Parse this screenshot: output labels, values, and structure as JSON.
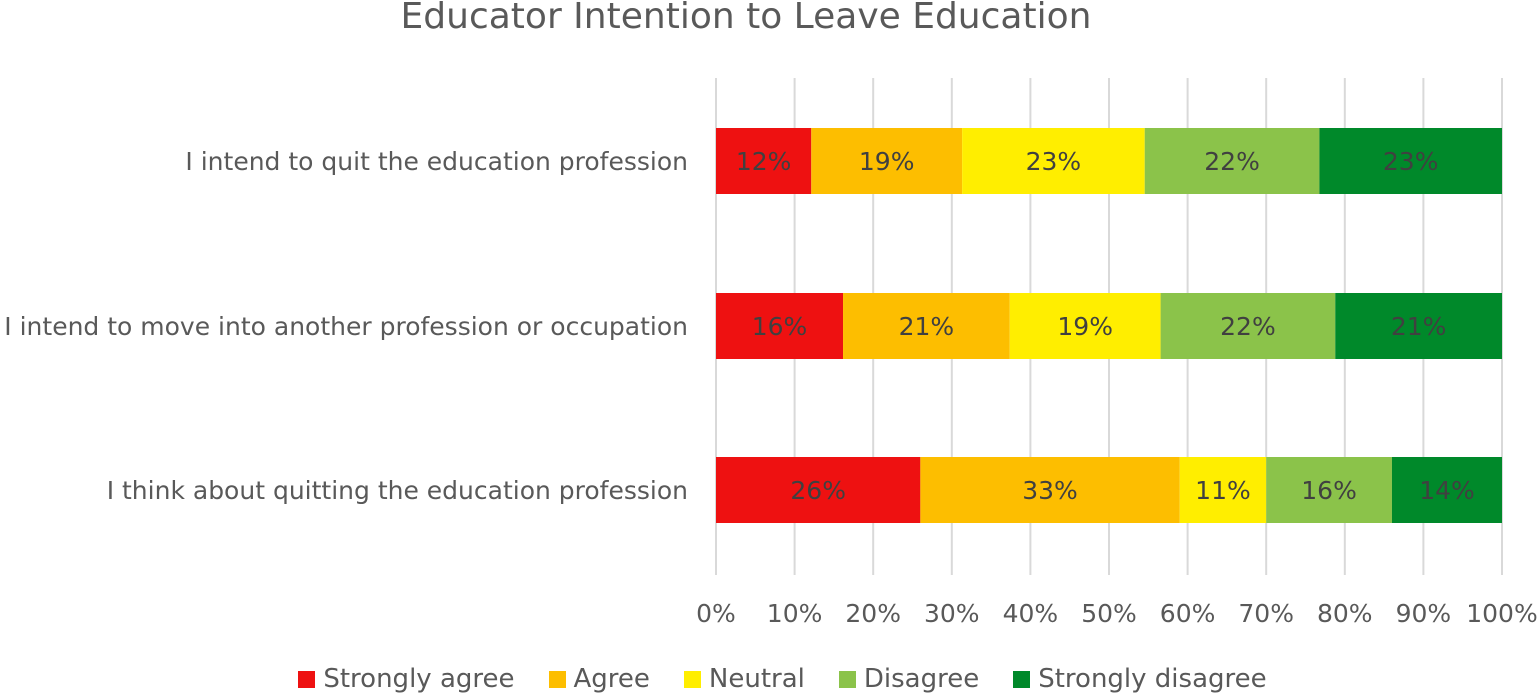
{
  "chart_data": {
    "type": "bar",
    "orientation": "horizontal",
    "stacked": true,
    "title": "Educator Intention to Leave Education",
    "categories": [
      "I intend to quit the education profession",
      "I intend to move into another profession or occupation",
      "I think about quitting the education profession"
    ],
    "series": [
      {
        "name": "Strongly agree",
        "color": "#ee1111",
        "values": [
          12,
          16,
          26
        ],
        "labels": [
          "12%",
          "16%",
          "26%"
        ]
      },
      {
        "name": "Agree",
        "color": "#fdbe00",
        "values": [
          19,
          21,
          33
        ],
        "labels": [
          "19%",
          "21%",
          "33%"
        ]
      },
      {
        "name": "Neutral",
        "color": "#ffee00",
        "values": [
          23,
          19,
          11
        ],
        "labels": [
          "23%",
          "19%",
          "11%"
        ]
      },
      {
        "name": "Disagree",
        "color": "#8bc34a",
        "values": [
          22,
          22,
          16
        ],
        "labels": [
          "22%",
          "22%",
          "16%"
        ]
      },
      {
        "name": "Strongly disagree",
        "color": "#00892a",
        "values": [
          23,
          21,
          14
        ],
        "labels": [
          "23%",
          "21%",
          "14%"
        ]
      }
    ],
    "xlim": [
      0,
      100
    ],
    "xticks": [
      "0%",
      "10%",
      "20%",
      "30%",
      "40%",
      "50%",
      "60%",
      "70%",
      "80%",
      "90%",
      "100%"
    ],
    "grid": true,
    "legend_position": "bottom"
  }
}
